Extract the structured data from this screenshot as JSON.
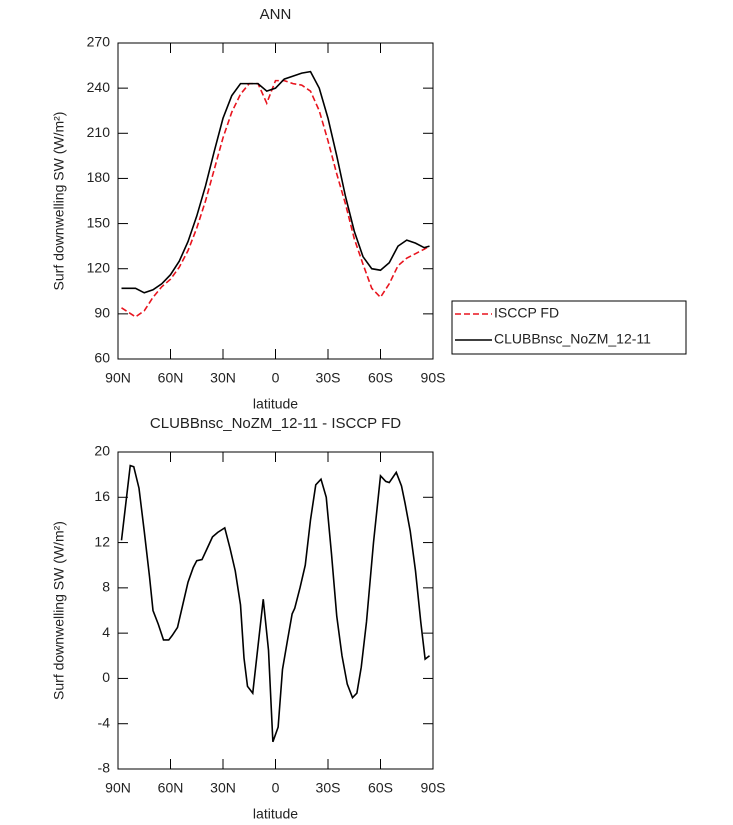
{
  "chart_data": [
    {
      "type": "line",
      "title": "ANN",
      "x_label": "latitude",
      "y_label": "Surf downwelling SW (W/m²)",
      "x": [
        88,
        80,
        75,
        70,
        65,
        60,
        55,
        50,
        45,
        40,
        35,
        30,
        25,
        20,
        15,
        10,
        5,
        0,
        -5,
        -10,
        -15,
        -20,
        -25,
        -30,
        -35,
        -40,
        -45,
        -50,
        -55,
        -60,
        -65,
        -70,
        -75,
        -80,
        -85,
        -88
      ],
      "series": [
        {
          "name": "ISCCP FD",
          "color": "#e8141e",
          "line_style": "dashed",
          "values": [
            94,
            88,
            92,
            101,
            108,
            113,
            121,
            132,
            147,
            165,
            186,
            207,
            224,
            236,
            243,
            243,
            230,
            245,
            245,
            243,
            242,
            238,
            225,
            205,
            183,
            163,
            140,
            123,
            107,
            101,
            110,
            122,
            127,
            130,
            133,
            135
          ]
        },
        {
          "name": "CLUBBnsc_NoZM_12-11",
          "color": "#000000",
          "line_style": "solid",
          "values": [
            107,
            107,
            104,
            106,
            110,
            116,
            125,
            138,
            155,
            175,
            198,
            220,
            235,
            243,
            243,
            243,
            238,
            240,
            246,
            248,
            250,
            251,
            240,
            220,
            195,
            168,
            145,
            128,
            120,
            119,
            124,
            135,
            139,
            137,
            134,
            135
          ]
        }
      ],
      "xlim": [
        90,
        -90
      ],
      "xticks": [
        {
          "value": 90,
          "label": "90N"
        },
        {
          "value": 60,
          "label": "60N"
        },
        {
          "value": 30,
          "label": "30N"
        },
        0,
        {
          "value": -30,
          "label": "30S"
        },
        {
          "value": -60,
          "label": "60S"
        },
        {
          "value": -90,
          "label": "90S"
        }
      ],
      "ylim": [
        60,
        270
      ],
      "yticks": [
        60,
        90,
        120,
        150,
        180,
        210,
        240,
        270
      ],
      "legend": "right"
    },
    {
      "type": "line",
      "title": "CLUBBnsc_NoZM_12-11 - ISCCP FD",
      "x_label": "latitude",
      "y_label": "Surf downwelling SW (W/m²)",
      "x": [
        88,
        83,
        81,
        78,
        75,
        72,
        70,
        67,
        64,
        61,
        59,
        56,
        53,
        50,
        47,
        45,
        42,
        39,
        36,
        33,
        29,
        26,
        23,
        20,
        18,
        16,
        13,
        7,
        4,
        1.5,
        -1.5,
        -4,
        -7,
        -9.5,
        -11,
        -14,
        -17,
        -20,
        -23,
        -26,
        -29,
        -32,
        -35,
        -38,
        -41,
        -44,
        -46.5,
        -49,
        -52,
        -56,
        -60,
        -63,
        -65,
        -69,
        -72,
        -74,
        -77,
        -80,
        -83,
        -85.5,
        -88
      ],
      "series": [
        {
          "color": "#000000",
          "line_style": "solid",
          "values": [
            12.2,
            18.8,
            18.7,
            16.8,
            13,
            9,
            6,
            4.8,
            3.4,
            3.4,
            3.8,
            4.5,
            6.5,
            8.5,
            9.8,
            10.4,
            10.5,
            11.5,
            12.5,
            12.9,
            13.3,
            11.5,
            9.5,
            6.5,
            1.8,
            -0.7,
            -1.3,
            7,
            2.5,
            -5.6,
            -4.3,
            0.8,
            3.5,
            5.7,
            6.2,
            8,
            10,
            14,
            17.1,
            17.6,
            16,
            11,
            5.5,
            2,
            -0.5,
            -1.7,
            -1.3,
            1,
            5,
            12,
            17.9,
            17.4,
            17.3,
            18.2,
            17,
            15.5,
            13,
            9.5,
            5,
            1.7,
            2
          ]
        }
      ],
      "xlim": [
        90,
        -90
      ],
      "xticks": [
        {
          "value": 90,
          "label": "90N"
        },
        {
          "value": 60,
          "label": "60N"
        },
        {
          "value": 30,
          "label": "30N"
        },
        0,
        {
          "value": -30,
          "label": "30S"
        },
        {
          "value": -60,
          "label": "60S"
        },
        {
          "value": -90,
          "label": "90S"
        }
      ],
      "ylim": [
        -8,
        20
      ],
      "yticks": [
        -8,
        -4,
        0,
        4,
        8,
        12,
        16,
        20
      ]
    }
  ]
}
